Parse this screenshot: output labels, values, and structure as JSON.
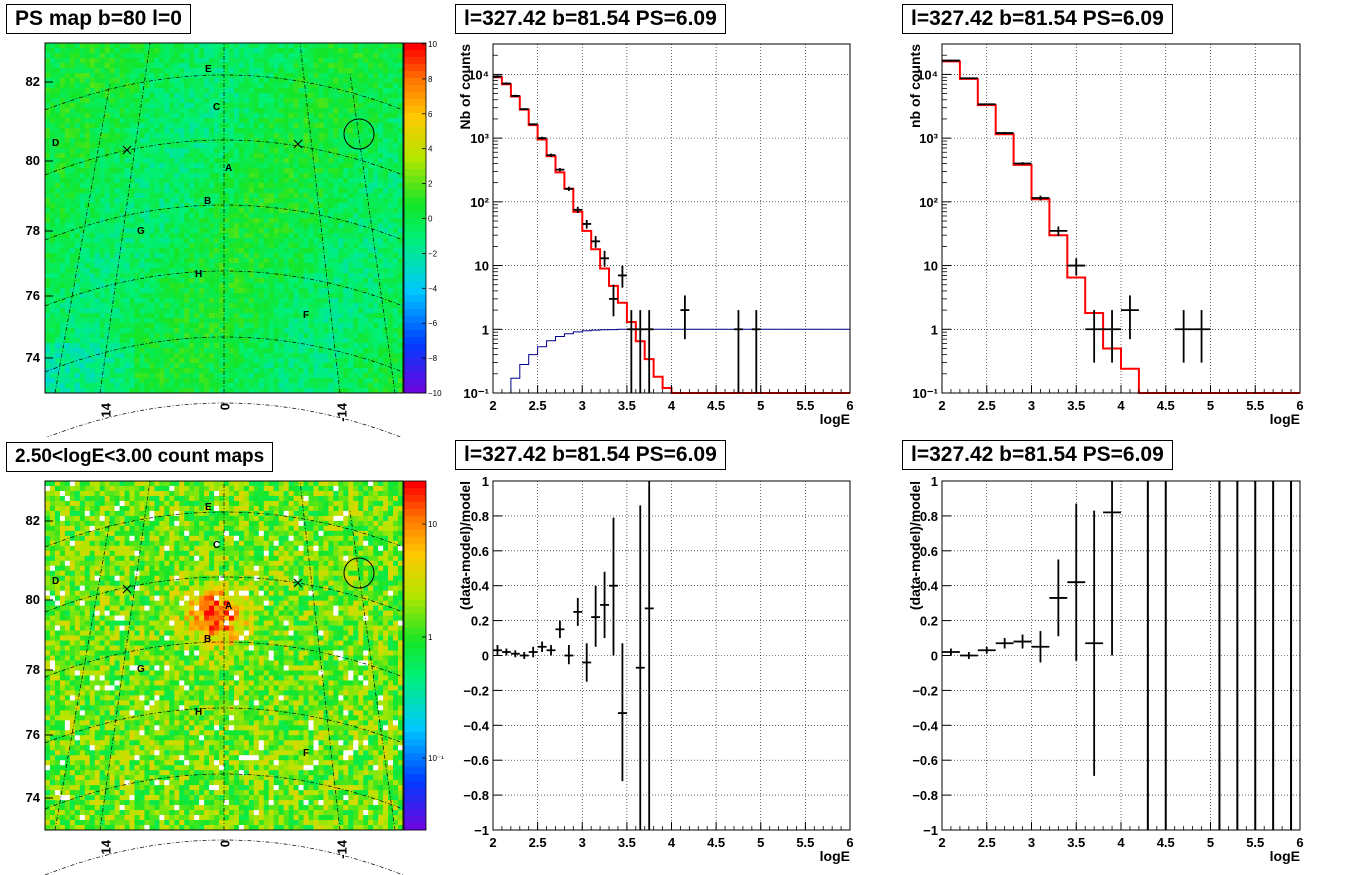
{
  "panels": {
    "ps_map": {
      "title": "PS map b=80 l=0",
      "y_ticks": [
        "82",
        "80",
        "78",
        "76",
        "74"
      ],
      "x_ticks": [
        "14",
        "0",
        "-14"
      ],
      "colorbar_ticks": [
        "10",
        "8",
        "6",
        "4",
        "2",
        "0",
        "−2",
        "−4",
        "−6",
        "−8",
        "−10"
      ],
      "colorbar_range": [
        -10,
        10
      ],
      "source_labels": [
        "E",
        "C",
        "D",
        "A",
        "B",
        "G",
        "H",
        "F"
      ]
    },
    "count_map": {
      "title": "2.50<logE<3.00 count maps",
      "y_ticks": [
        "82",
        "80",
        "78",
        "76",
        "74"
      ],
      "x_ticks": [
        "14",
        "0",
        "-14"
      ],
      "colorbar_ticks": [
        "10",
        "1",
        "10⁻¹"
      ],
      "source_labels": [
        "E",
        "C",
        "D",
        "A",
        "B",
        "G",
        "H",
        "F"
      ]
    },
    "spectrum_left_title": "l=327.42 b=81.54 PS=6.09",
    "spectrum_right_title": "l=327.42 b=81.54 PS=6.09",
    "residual_left_title": "l=327.42 b=81.54 PS=6.09",
    "residual_right_title": "l=327.42 b=81.54 PS=6.09"
  },
  "chart_data": [
    {
      "id": "spectrum_left",
      "type": "line",
      "xlabel": "logE",
      "ylabel": "Nb of counts",
      "xlim": [
        2,
        6
      ],
      "ylim": [
        0.1,
        30000
      ],
      "yscale": "log",
      "grid": true,
      "x_tick_labels": [
        "2",
        "2.5",
        "3",
        "3.5",
        "4",
        "4.5",
        "5",
        "5.5",
        "6"
      ],
      "y_tick_labels": [
        "10⁻¹",
        "1",
        "10",
        "10²",
        "10³",
        "10⁴"
      ],
      "series": [
        {
          "kind": "step",
          "color": "#ff0000",
          "edges": [
            2.0,
            2.1,
            2.2,
            2.3,
            2.4,
            2.5,
            2.6,
            2.7,
            2.8,
            2.9,
            3.0,
            3.1,
            3.2,
            3.3,
            3.4,
            3.5,
            3.6,
            3.7,
            3.8,
            3.9,
            4.0,
            4.1,
            6.0
          ],
          "values": [
            9000,
            7000,
            4500,
            2800,
            1600,
            950,
            520,
            290,
            160,
            70,
            35,
            18,
            9,
            4.8,
            2.6,
            1.3,
            0.65,
            0.34,
            0.18,
            0.12,
            0.1,
            0.1
          ]
        },
        {
          "kind": "step",
          "color": "#00008b",
          "edges": [
            2.0,
            2.1,
            2.2,
            2.3,
            2.4,
            2.5,
            2.6,
            2.7,
            2.8,
            2.9,
            3.0,
            3.1,
            3.2,
            3.3,
            3.4,
            3.5,
            6.0
          ],
          "values": [
            0.08,
            0.1,
            0.17,
            0.28,
            0.4,
            0.53,
            0.66,
            0.77,
            0.85,
            0.91,
            0.95,
            0.97,
            0.98,
            0.99,
            1.0,
            1.0
          ]
        },
        {
          "kind": "errorbar",
          "color": "#000000",
          "x": [
            2.05,
            2.15,
            2.25,
            2.35,
            2.45,
            2.55,
            2.65,
            2.75,
            2.85,
            2.95,
            3.05,
            3.15,
            3.25,
            3.35,
            3.45,
            3.55,
            3.65,
            3.75,
            4.15,
            4.75,
            4.95
          ],
          "y": [
            9300,
            7200,
            4600,
            2850,
            1650,
            1000,
            540,
            320,
            160,
            75,
            45,
            24,
            13,
            3,
            7,
            1,
            1,
            1,
            2,
            1,
            1
          ],
          "xerr": 0.05,
          "ylo": [
            8900,
            6900,
            4400,
            2750,
            1600,
            950,
            510,
            300,
            148,
            67,
            38,
            19,
            9.6,
            1.6,
            4.5,
            0.1,
            0.1,
            0.1,
            0.7,
            0.1,
            0.1
          ],
          "yhi": [
            9700,
            7500,
            4800,
            2950,
            1700,
            1050,
            570,
            340,
            173,
            84,
            52,
            29,
            17,
            5,
            10,
            2,
            2,
            2,
            3.4,
            2,
            2
          ]
        }
      ]
    },
    {
      "id": "spectrum_right",
      "type": "line",
      "xlabel": "logE",
      "ylabel": "nb of counts",
      "xlim": [
        2,
        6
      ],
      "ylim": [
        0.1,
        30000
      ],
      "yscale": "log",
      "grid": true,
      "x_tick_labels": [
        "2",
        "2.5",
        "3",
        "3.5",
        "4",
        "4.5",
        "5",
        "5.5",
        "6"
      ],
      "y_tick_labels": [
        "10⁻¹",
        "1",
        "10",
        "10²",
        "10³",
        "10⁴"
      ],
      "series": [
        {
          "kind": "step",
          "color": "#ff0000",
          "edges": [
            2.0,
            2.2,
            2.4,
            2.6,
            2.8,
            3.0,
            3.2,
            3.4,
            3.6,
            3.8,
            4.0,
            4.2,
            4.4,
            6.0
          ],
          "values": [
            16000,
            8500,
            3300,
            1150,
            380,
            110,
            30,
            6.5,
            1.8,
            0.5,
            0.24,
            0.1,
            0.1
          ]
        },
        {
          "kind": "errorbar",
          "color": "#000000",
          "x": [
            2.1,
            2.3,
            2.5,
            2.7,
            2.9,
            3.1,
            3.3,
            3.5,
            3.7,
            3.9,
            4.1,
            4.7,
            4.9
          ],
          "y": [
            16500,
            8700,
            3400,
            1200,
            400,
            115,
            35,
            10,
            1,
            1,
            2,
            1,
            1
          ],
          "xerr": 0.1,
          "ylo": [
            16000,
            8500,
            3300,
            1150,
            380,
            105,
            29,
            7,
            0.3,
            0.3,
            0.7,
            0.3,
            0.3
          ],
          "yhi": [
            17000,
            8900,
            3500,
            1250,
            420,
            125,
            41,
            13,
            2,
            2,
            3.4,
            2,
            2
          ]
        }
      ]
    },
    {
      "id": "residual_left",
      "type": "scatter",
      "xlabel": "logE",
      "ylabel": "(data-model)/model",
      "xlim": [
        2,
        6
      ],
      "ylim": [
        -1,
        1
      ],
      "grid": true,
      "x_tick_labels": [
        "2",
        "2.5",
        "3",
        "3.5",
        "4",
        "4.5",
        "5",
        "5.5",
        "6"
      ],
      "y_tick_labels": [
        "−1",
        "−0.8",
        "−0.6",
        "−0.4",
        "−0.2",
        "0",
        "0.2",
        "0.4",
        "0.6",
        "0.8",
        "1"
      ],
      "series": [
        {
          "kind": "errorbar",
          "color": "#000000",
          "x": [
            2.05,
            2.15,
            2.25,
            2.35,
            2.45,
            2.55,
            2.65,
            2.75,
            2.85,
            2.95,
            3.05,
            3.15,
            3.25,
            3.35,
            3.45,
            3.65,
            3.75
          ],
          "y": [
            0.03,
            0.02,
            0.01,
            0.0,
            0.02,
            0.05,
            0.03,
            0.15,
            0.0,
            0.25,
            -0.04,
            0.22,
            0.29,
            0.4,
            -0.33,
            -0.07,
            0.27
          ],
          "xerr": 0.05,
          "ylo": [
            0.0,
            0.0,
            -0.01,
            -0.02,
            -0.01,
            0.02,
            0.0,
            0.1,
            -0.05,
            0.17,
            -0.15,
            0.05,
            0.1,
            0.0,
            -0.72,
            -1.0,
            -1.0
          ],
          "yhi": [
            0.06,
            0.04,
            0.03,
            0.02,
            0.05,
            0.08,
            0.06,
            0.2,
            0.06,
            0.33,
            0.07,
            0.4,
            0.48,
            0.79,
            0.07,
            0.86,
            1.0
          ]
        }
      ]
    },
    {
      "id": "residual_right",
      "type": "scatter",
      "xlabel": "logE",
      "ylabel": "(data-model)/model",
      "xlim": [
        2,
        6
      ],
      "ylim": [
        -1,
        1
      ],
      "grid": true,
      "x_tick_labels": [
        "2",
        "2.5",
        "3",
        "3.5",
        "4",
        "4.5",
        "5",
        "5.5",
        "6"
      ],
      "y_tick_labels": [
        "−1",
        "−0.8",
        "−0.6",
        "−0.4",
        "−0.2",
        "0",
        "0.2",
        "0.4",
        "0.6",
        "0.8",
        "1"
      ],
      "series": [
        {
          "kind": "errorbar",
          "color": "#000000",
          "x": [
            2.1,
            2.3,
            2.5,
            2.7,
            2.9,
            3.1,
            3.3,
            3.5,
            3.7,
            3.9
          ],
          "y": [
            0.02,
            0.0,
            0.03,
            0.07,
            0.08,
            0.05,
            0.33,
            0.42,
            0.07,
            0.82
          ],
          "xerr": 0.1,
          "ylo": [
            0.0,
            -0.02,
            0.01,
            0.04,
            0.04,
            -0.04,
            0.11,
            -0.03,
            -0.69,
            0.0
          ],
          "yhi": [
            0.04,
            0.02,
            0.05,
            0.1,
            0.12,
            0.14,
            0.55,
            0.87,
            0.83,
            1.0
          ]
        },
        {
          "kind": "vlines",
          "color": "#000000",
          "x": [
            4.3,
            4.5,
            5.1,
            5.3,
            5.5,
            5.7,
            5.9
          ],
          "ylo": -1,
          "yhi": 1
        }
      ]
    }
  ]
}
